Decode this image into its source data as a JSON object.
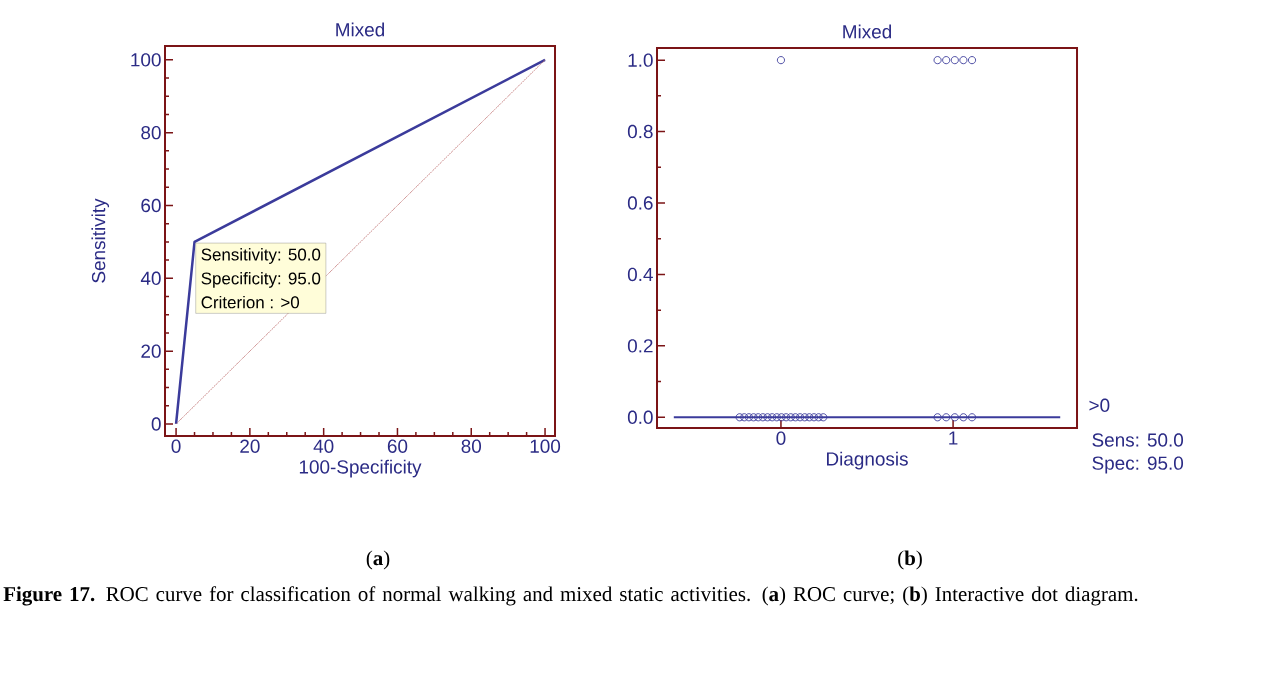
{
  "chart_data": [
    {
      "type": "line",
      "title": "Mixed",
      "xlabel": "100-Specificity",
      "ylabel": "Sensitivity",
      "xlim": [
        -3,
        102.7
      ],
      "ylim": [
        -3.3,
        103.8
      ],
      "xticks": [
        0,
        20,
        40,
        60,
        80,
        100
      ],
      "yticks": [
        0,
        20,
        40,
        60,
        80,
        100
      ],
      "series": [
        {
          "type": "line",
          "x": [
            0,
            5,
            100
          ],
          "values": [
            0,
            50,
            100
          ],
          "color": "#3b3b9b",
          "line_style": "solid"
        },
        {
          "type": "line",
          "x": [
            100,
            0
          ],
          "values": [
            100,
            0
          ],
          "color": "#c07070",
          "line_style": "dotted"
        }
      ],
      "annotations": [
        {
          "text": "Sensitivity: 50.0",
          "x": 5,
          "y": 50
        },
        "Specificity: 95.0",
        "Criterion : >0",
        "(**a**)",
        "**Figure 17.** ROC curve for classification of normal walking and mixed static activities. (**a**) ROC curve; (**b**) Interactive dot diagram."
      ]
    },
    {
      "type": "scatter",
      "title": "Mixed",
      "xlabel": "Diagnosis",
      "marker": "circle",
      "xlim": [
        -0.72,
        1.72
      ],
      "ylim": [
        -0.03,
        1.034
      ],
      "xticks": [
        0,
        1
      ],
      "yticks": [
        {
          "value": 0,
          "label": "0.0"
        },
        {
          "value": 0.2,
          "label": "0.2"
        },
        {
          "value": 0.4,
          "label": "0.4"
        },
        {
          "value": 0.6,
          "label": "0.6"
        },
        {
          "value": 0.8,
          "label": "0.8"
        },
        {
          "value": 1,
          "label": "1.0"
        }
      ],
      "series": [
        {
          "color": "#3b3b9b",
          "x": [
            -0.24,
            -0.213,
            -0.186,
            -0.159,
            -0.132,
            -0.105,
            -0.078,
            -0.051,
            -0.024,
            0.003,
            0.03,
            0.057,
            0.084,
            0.111,
            0.138,
            0.165,
            0.192,
            0.219,
            0.246,
            0,
            0.91,
            0.96,
            1.01,
            1.06,
            1.11,
            0.91,
            0.96,
            1.01,
            1.06,
            1.11
          ],
          "values": [
            0,
            0,
            0,
            0,
            0,
            0,
            0,
            0,
            0,
            0,
            0,
            0,
            0,
            0,
            0,
            0,
            0,
            0,
            0,
            1,
            1,
            1,
            1,
            1,
            1,
            0,
            0,
            0,
            0,
            0
          ]
        }
      ],
      "ref_lines": [
        {
          "axis": "y",
          "value": 0,
          "label": ">0",
          "color": "#3b3b9b"
        }
      ],
      "annotations": [
        "Sens: 50.0",
        "Spec: 95.0",
        "(**b**)"
      ]
    }
  ]
}
